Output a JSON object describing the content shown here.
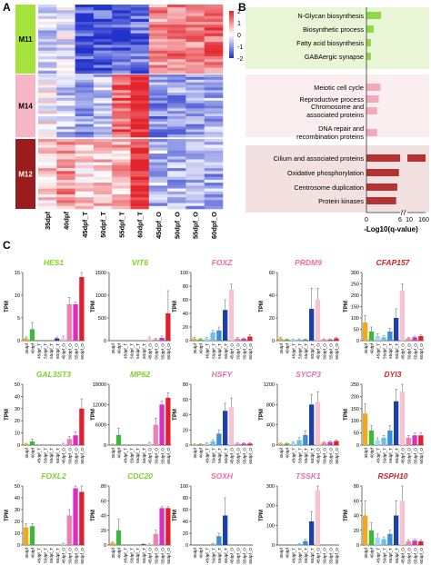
{
  "panels": {
    "a": "A",
    "b": "B",
    "c": "C"
  },
  "chart_data": [
    {
      "type": "heatmap",
      "panel": "A",
      "modules": [
        {
          "name": "M11",
          "color": "#a6e23c",
          "text_color": "#000000"
        },
        {
          "name": "M14",
          "color": "#f7b6c6",
          "text_color": "#000000"
        },
        {
          "name": "M12",
          "color": "#9b1c1c",
          "text_color": "#ffffff"
        }
      ],
      "columns": [
        "35dpf",
        "40dpf",
        "45dpf_T",
        "50dpf_T",
        "55dpf_T",
        "60dpf_T",
        "45dpf_O",
        "50dpf_O",
        "55dpf_O",
        "60dpf_O"
      ],
      "module_patterns": [
        [
          -0.4,
          -0.1,
          -1.6,
          -1.6,
          -1.5,
          -1.4,
          1.0,
          1.1,
          1.2,
          1.3
        ],
        [
          0.1,
          -0.5,
          -0.9,
          -0.5,
          1.5,
          2.0,
          -1.0,
          -0.9,
          -0.9,
          -0.8
        ],
        [
          0.4,
          1.0,
          0.4,
          0.5,
          0.7,
          2.0,
          -0.7,
          -0.7,
          -0.8,
          -0.8
        ]
      ],
      "colorbar": {
        "ticks": [
          2,
          1,
          0,
          -1,
          -2
        ],
        "low_color": "#2233cc",
        "mid_color": "#ffffff",
        "high_color": "#e3242b"
      }
    },
    {
      "type": "bar",
      "panel": "B",
      "orientation": "horizontal",
      "groups": [
        {
          "bg": "#e8f6d6",
          "bar_color": "#90d848",
          "categories": [
            "N-Glycan biosynthesis",
            "Biosynthetic process",
            "Fatty acid biosynthesis",
            "GABAergic synapse"
          ],
          "values": [
            2.6,
            1.3,
            0.8,
            0.8
          ]
        },
        {
          "bg": "#fbeef1",
          "bar_color": "#f4a9bb",
          "categories": [
            "Meiotic cell cycle",
            "Reproductive process",
            "Chromosome and associated proteins",
            "DNA repair and recombination proteins"
          ],
          "values": [
            2.5,
            2.2,
            1.9,
            1.9
          ]
        },
        {
          "bg": "#f3e0e0",
          "bar_color": "#b33333",
          "categories": [
            "Cilium and associated proteins",
            "Oxidative phosphorylation",
            "Centrosome duplication",
            "Protein kinases"
          ],
          "values": [
            160,
            5.8,
            5.5,
            5.3
          ]
        }
      ],
      "axis_ticks": [
        "0",
        "6",
        "10",
        "160"
      ],
      "xlabel": "-Log10(q-value)"
    },
    {
      "type": "bar",
      "panel": "C",
      "ylabel": "TPM",
      "categories": [
        "35dpf",
        "40dpf",
        "45dpf_T",
        "50dpf_T",
        "55dpf_T",
        "60dpf_T",
        "45dpf_O",
        "50dpf_O",
        "55dpf_O",
        "60dpf_O"
      ],
      "bar_colors": [
        "#f0a81c",
        "#3cb83c",
        "#9fd8f0",
        "#6ec0ea",
        "#3a8fd8",
        "#1c3fa8",
        "#f6c4d0",
        "#ef7fb0",
        "#d82fc0",
        "#e0202e"
      ],
      "subplots": [
        {
          "gene": "HES1",
          "title_color": "#7ed321",
          "ymax": 15,
          "ticks": [
            0,
            5,
            10,
            15
          ],
          "values": [
            0.5,
            2.5,
            0,
            0,
            0,
            0.5,
            0.5,
            8,
            8,
            14
          ],
          "errors": [
            0.3,
            1.5,
            0,
            0,
            0,
            0.3,
            0.5,
            1.5,
            0.5,
            1.5
          ]
        },
        {
          "gene": "VIT6",
          "title_color": "#7ed321",
          "ymax": 1500,
          "ticks": [
            0,
            500,
            1000,
            1500
          ],
          "values": [
            0,
            0,
            0,
            0,
            0,
            0,
            50,
            30,
            60,
            600
          ],
          "errors": [
            0,
            0,
            0,
            0,
            0,
            0,
            30,
            20,
            40,
            500
          ]
        },
        {
          "gene": "FOXZ",
          "title_color": "#f06aa0",
          "ymax": 100,
          "ticks": [
            0,
            20,
            40,
            60,
            80,
            100
          ],
          "values": [
            3,
            2,
            3,
            12,
            15,
            45,
            75,
            3,
            3,
            6
          ],
          "errors": [
            2,
            1,
            2,
            3,
            5,
            15,
            8,
            2,
            1,
            3
          ]
        },
        {
          "gene": "PRDM9",
          "title_color": "#f06aa0",
          "ymax": 60,
          "ticks": [
            0,
            20,
            40,
            60
          ],
          "values": [
            2,
            1,
            1,
            1,
            1,
            28,
            36,
            1,
            1,
            2
          ],
          "errors": [
            1,
            0.5,
            0.5,
            0.5,
            0.5,
            18,
            10,
            0.5,
            0.5,
            1
          ]
        },
        {
          "gene": "CFAP157",
          "title_color": "#d4202a",
          "ymax": 300,
          "ticks": [
            0,
            50,
            100,
            150,
            200,
            250,
            300
          ],
          "values": [
            80,
            40,
            20,
            15,
            40,
            100,
            220,
            10,
            15,
            20
          ],
          "errors": [
            30,
            20,
            10,
            8,
            15,
            40,
            30,
            5,
            5,
            5
          ]
        },
        {
          "gene": "GAL3ST3",
          "title_color": "#7ed321",
          "ymax": 50,
          "ticks": [
            0,
            10,
            20,
            30,
            40,
            50
          ],
          "values": [
            1,
            3,
            0,
            0,
            0,
            0,
            1,
            5,
            8,
            30
          ],
          "errors": [
            0.5,
            2,
            0,
            0,
            0,
            0,
            0.5,
            2,
            3,
            8
          ]
        },
        {
          "gene": "MP62",
          "title_color": "#7ed321",
          "ymax": 18000,
          "ticks": [
            0,
            6000,
            12000,
            18000
          ],
          "values": [
            200,
            3000,
            0,
            0,
            0,
            0,
            500,
            6000,
            12000,
            14000
          ],
          "errors": [
            100,
            2000,
            0,
            0,
            0,
            0,
            300,
            2000,
            1000,
            1500
          ]
        },
        {
          "gene": "HSFY",
          "title_color": "#f06aa0",
          "ymax": 80,
          "ticks": [
            0,
            20,
            40,
            60,
            80
          ],
          "values": [
            1,
            1,
            2,
            5,
            15,
            45,
            50,
            2,
            2,
            2
          ],
          "errors": [
            0.5,
            0.5,
            1,
            2,
            5,
            10,
            12,
            1,
            1,
            1
          ]
        },
        {
          "gene": "SYCP3",
          "title_color": "#f06aa0",
          "ymax": 1200,
          "ticks": [
            0,
            400,
            800,
            1200
          ],
          "values": [
            30,
            30,
            50,
            100,
            200,
            800,
            850,
            50,
            60,
            80
          ],
          "errors": [
            10,
            10,
            20,
            50,
            80,
            200,
            200,
            20,
            20,
            20
          ]
        },
        {
          "gene": "DYI3",
          "title_color": "#d4202a",
          "ymax": 250,
          "ticks": [
            0,
            50,
            100,
            150,
            200,
            250
          ],
          "values": [
            130,
            60,
            20,
            30,
            60,
            180,
            220,
            30,
            40,
            40
          ],
          "errors": [
            40,
            20,
            10,
            10,
            20,
            50,
            30,
            10,
            10,
            10
          ]
        },
        {
          "gene": "FOXL2",
          "title_color": "#7ed321",
          "ymax": 50,
          "ticks": [
            0,
            10,
            20,
            30,
            40,
            50
          ],
          "values": [
            15,
            16,
            0,
            0,
            0,
            0,
            1,
            25,
            48,
            45
          ],
          "errors": [
            3,
            2,
            0,
            0,
            0,
            0,
            0.5,
            5,
            10,
            30
          ]
        },
        {
          "gene": "CDC20",
          "title_color": "#7ed321",
          "ymax": 80,
          "ticks": [
            0,
            20,
            40,
            60,
            80
          ],
          "values": [
            3,
            20,
            0,
            0,
            0,
            1,
            1,
            15,
            50,
            50
          ],
          "errors": [
            1,
            15,
            0,
            0,
            0,
            0.5,
            0.5,
            5,
            2,
            2
          ]
        },
        {
          "gene": "SOXH",
          "title_color": "#f06aa0",
          "ymax": 100,
          "ticks": [
            0,
            20,
            40,
            60,
            80,
            100
          ],
          "values": [
            0,
            0,
            0,
            2,
            15,
            50,
            0,
            0,
            0,
            0
          ],
          "errors": [
            0,
            0,
            0,
            1,
            5,
            30,
            0,
            0,
            0,
            0
          ]
        },
        {
          "gene": "TSSK1",
          "title_color": "#f06aa0",
          "ymax": 300,
          "ticks": [
            0,
            100,
            200,
            300
          ],
          "values": [
            0,
            0,
            0,
            5,
            20,
            120,
            280,
            0,
            0,
            0
          ],
          "errors": [
            0,
            0,
            0,
            2,
            10,
            50,
            40,
            0,
            0,
            0
          ]
        },
        {
          "gene": "RSPH10",
          "title_color": "#d4202a",
          "ymax": 80,
          "ticks": [
            0,
            20,
            40,
            60,
            80
          ],
          "values": [
            40,
            20,
            10,
            8,
            15,
            40,
            60,
            5,
            6,
            5
          ],
          "errors": [
            20,
            10,
            5,
            3,
            5,
            20,
            20,
            2,
            2,
            2
          ]
        }
      ]
    }
  ]
}
